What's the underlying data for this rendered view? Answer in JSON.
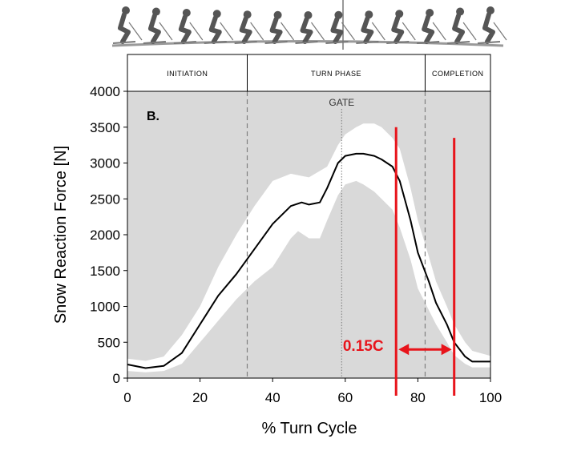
{
  "chart_data": {
    "type": "line",
    "panel_label": "B.",
    "xlabel": "% Turn Cycle",
    "ylabel": "Snow Reaction Force [N]",
    "xlim": [
      0,
      100
    ],
    "ylim": [
      0,
      4000
    ],
    "xticks": [
      0,
      20,
      40,
      60,
      80,
      100
    ],
    "yticks": [
      0,
      500,
      1000,
      1500,
      2000,
      2500,
      3000,
      3500,
      4000
    ],
    "phases": [
      {
        "label": "INITIATION",
        "start": 0,
        "end": 33
      },
      {
        "label": "TURN PHASE",
        "start": 33,
        "end": 82
      },
      {
        "label": "COMPLETION",
        "start": 82,
        "end": 100
      }
    ],
    "phase_dividers": [
      33,
      82
    ],
    "gate": {
      "label": "GATE",
      "x": 59
    },
    "series": [
      {
        "style": "mean",
        "x": [
          0,
          5,
          10,
          15,
          20,
          25,
          30,
          35,
          40,
          45,
          48,
          50,
          53,
          55,
          58,
          60,
          63,
          65,
          68,
          70,
          73,
          75,
          78,
          80,
          83,
          85,
          88,
          90,
          93,
          95,
          100
        ],
        "y": [
          190,
          140,
          170,
          350,
          750,
          1150,
          1450,
          1800,
          2150,
          2400,
          2450,
          2420,
          2450,
          2650,
          3000,
          3100,
          3130,
          3130,
          3100,
          3050,
          2950,
          2750,
          2200,
          1750,
          1350,
          1050,
          750,
          500,
          300,
          230,
          230
        ]
      },
      {
        "style": "upper",
        "x": [
          0,
          5,
          10,
          15,
          20,
          25,
          30,
          35,
          40,
          45,
          50,
          55,
          58,
          60,
          63,
          65,
          68,
          70,
          73,
          75,
          78,
          80,
          83,
          85,
          88,
          90,
          93,
          95,
          100
        ],
        "y": [
          270,
          240,
          300,
          600,
          1000,
          1550,
          2000,
          2400,
          2750,
          2850,
          2800,
          2950,
          3250,
          3400,
          3500,
          3550,
          3550,
          3500,
          3350,
          3200,
          2650,
          2200,
          1700,
          1350,
          1000,
          750,
          500,
          380,
          310
        ]
      },
      {
        "style": "lower",
        "x": [
          0,
          5,
          10,
          15,
          20,
          25,
          30,
          35,
          40,
          45,
          47,
          50,
          53,
          55,
          58,
          60,
          63,
          65,
          68,
          70,
          73,
          75,
          78,
          80,
          83,
          85,
          88,
          90,
          93,
          95,
          100
        ],
        "y": [
          100,
          80,
          100,
          200,
          500,
          800,
          1100,
          1350,
          1550,
          1950,
          2050,
          1950,
          1950,
          2200,
          2550,
          2700,
          2750,
          2700,
          2600,
          2500,
          2350,
          2100,
          1650,
          1250,
          950,
          750,
          500,
          320,
          200,
          150,
          150
        ]
      }
    ],
    "annotation": {
      "text": "0.15C",
      "x_start": 74,
      "x_end": 90,
      "y": 400,
      "marker_lines_x": [
        74,
        90
      ],
      "marker_top_y": [
        3500,
        3350
      ],
      "color": "#e8141b"
    },
    "colors": {
      "plot_background": "#d9d9d9",
      "band": "#ffffff",
      "mean_line": "#000000",
      "divider": "#808080",
      "annotation": "#e8141b"
    }
  },
  "illustration": {
    "name": "skier-sequence",
    "figure_count": 13
  }
}
